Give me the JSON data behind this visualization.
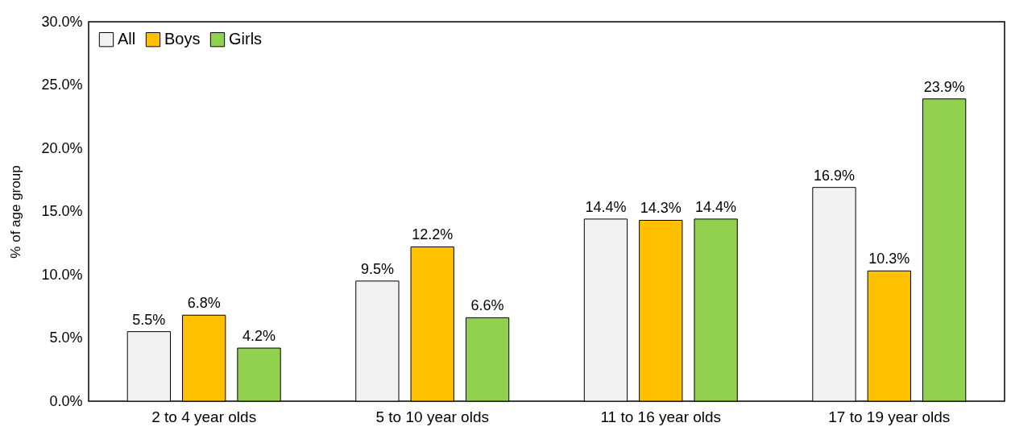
{
  "chart_data": {
    "type": "bar",
    "ylabel": "% of age group",
    "categories": [
      "2 to 4 year olds",
      "5 to 10 year olds",
      "11 to 16 year olds",
      "17 to 19 year olds"
    ],
    "series": [
      {
        "name": "All",
        "color": "#f2f2f2",
        "values": [
          5.5,
          9.5,
          14.4,
          16.9
        ],
        "value_labels": [
          "5.5%",
          "9.5%",
          "14.4%",
          "16.9%"
        ]
      },
      {
        "name": "Boys",
        "color": "#ffc000",
        "values": [
          6.8,
          12.2,
          14.3,
          10.3
        ],
        "value_labels": [
          "6.8%",
          "12.2%",
          "14.3%",
          "10.3%"
        ]
      },
      {
        "name": "Girls",
        "color": "#92d050",
        "values": [
          4.2,
          6.6,
          14.4,
          23.9
        ],
        "value_labels": [
          "4.2%",
          "6.6%",
          "14.4%",
          "23.9%"
        ]
      }
    ],
    "ylim": [
      0,
      30
    ],
    "yticks": [
      {
        "value": 0,
        "label": "0.0%"
      },
      {
        "value": 5,
        "label": "5.0%"
      },
      {
        "value": 10,
        "label": "10.0%"
      },
      {
        "value": 15,
        "label": "15.0%"
      },
      {
        "value": 20,
        "label": "20.0%"
      },
      {
        "value": 25,
        "label": "25.0%"
      },
      {
        "value": 30,
        "label": "30.0%"
      }
    ],
    "grid": false,
    "legend": "top left"
  }
}
